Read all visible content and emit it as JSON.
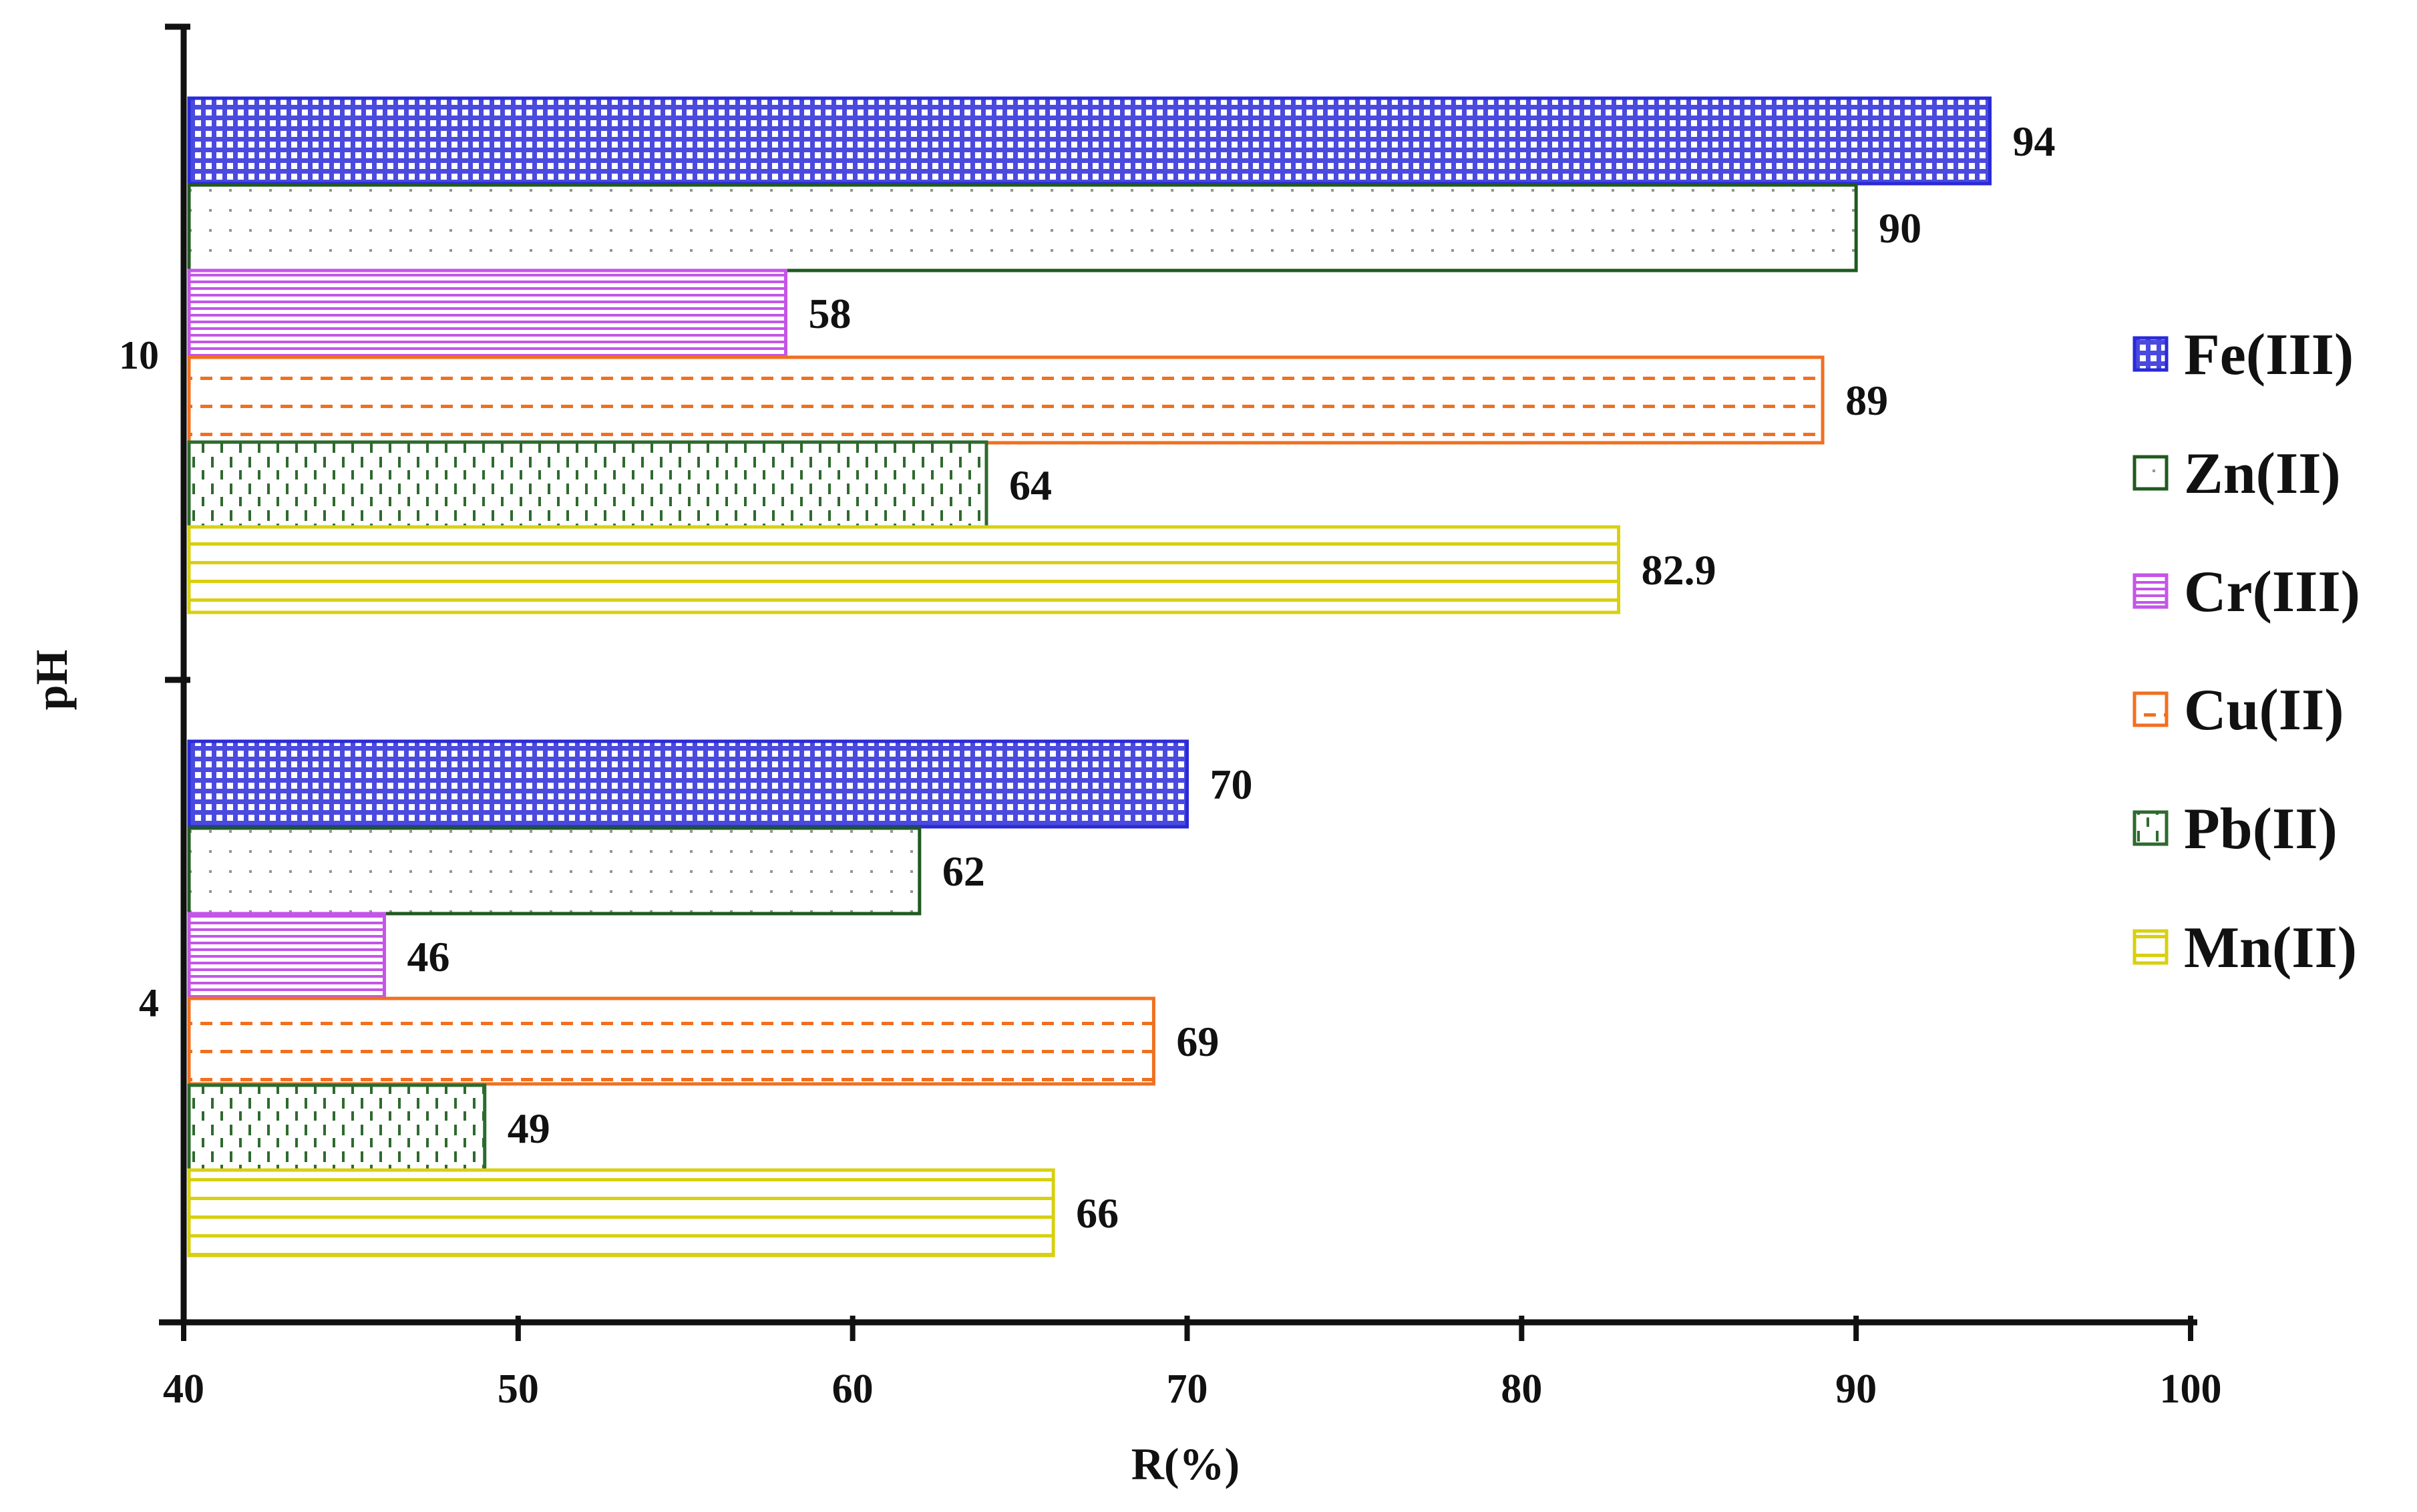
{
  "chart_data": {
    "type": "bar",
    "orientation": "horizontal",
    "title": "",
    "xlabel": "R(%)",
    "ylabel": "pH",
    "xlim": [
      40,
      100
    ],
    "xticks": [
      40,
      50,
      60,
      70,
      80,
      90,
      100
    ],
    "categories": [
      "10",
      "4"
    ],
    "series": [
      {
        "name": "Fe(III)",
        "values": [
          94,
          70
        ],
        "data_labels": [
          "94",
          "70"
        ],
        "color": "#2a2ad8",
        "pattern": "grid"
      },
      {
        "name": "Zn(II)",
        "values": [
          90,
          62
        ],
        "data_labels": [
          "90",
          "62"
        ],
        "color": "#1f5a1f",
        "pattern": "dots"
      },
      {
        "name": "Cr(III)",
        "values": [
          58,
          46
        ],
        "data_labels": [
          "58",
          "46"
        ],
        "color": "#c455e8",
        "pattern": "horizontal-lines"
      },
      {
        "name": "Cu(II)",
        "values": [
          89,
          69
        ],
        "data_labels": [
          "89",
          "69"
        ],
        "color": "#f07020",
        "pattern": "dashes"
      },
      {
        "name": "Pb(II)",
        "values": [
          64,
          49
        ],
        "data_labels": [
          "64",
          "49"
        ],
        "color": "#2e6a2e",
        "pattern": "vertical-dashes"
      },
      {
        "name": "Mn(II)",
        "values": [
          82.9,
          66
        ],
        "data_labels": [
          "82.9",
          "66"
        ],
        "color": "#d8d010",
        "pattern": "wide-horizontal-lines"
      }
    ],
    "grid": false,
    "legend_position": "right"
  }
}
